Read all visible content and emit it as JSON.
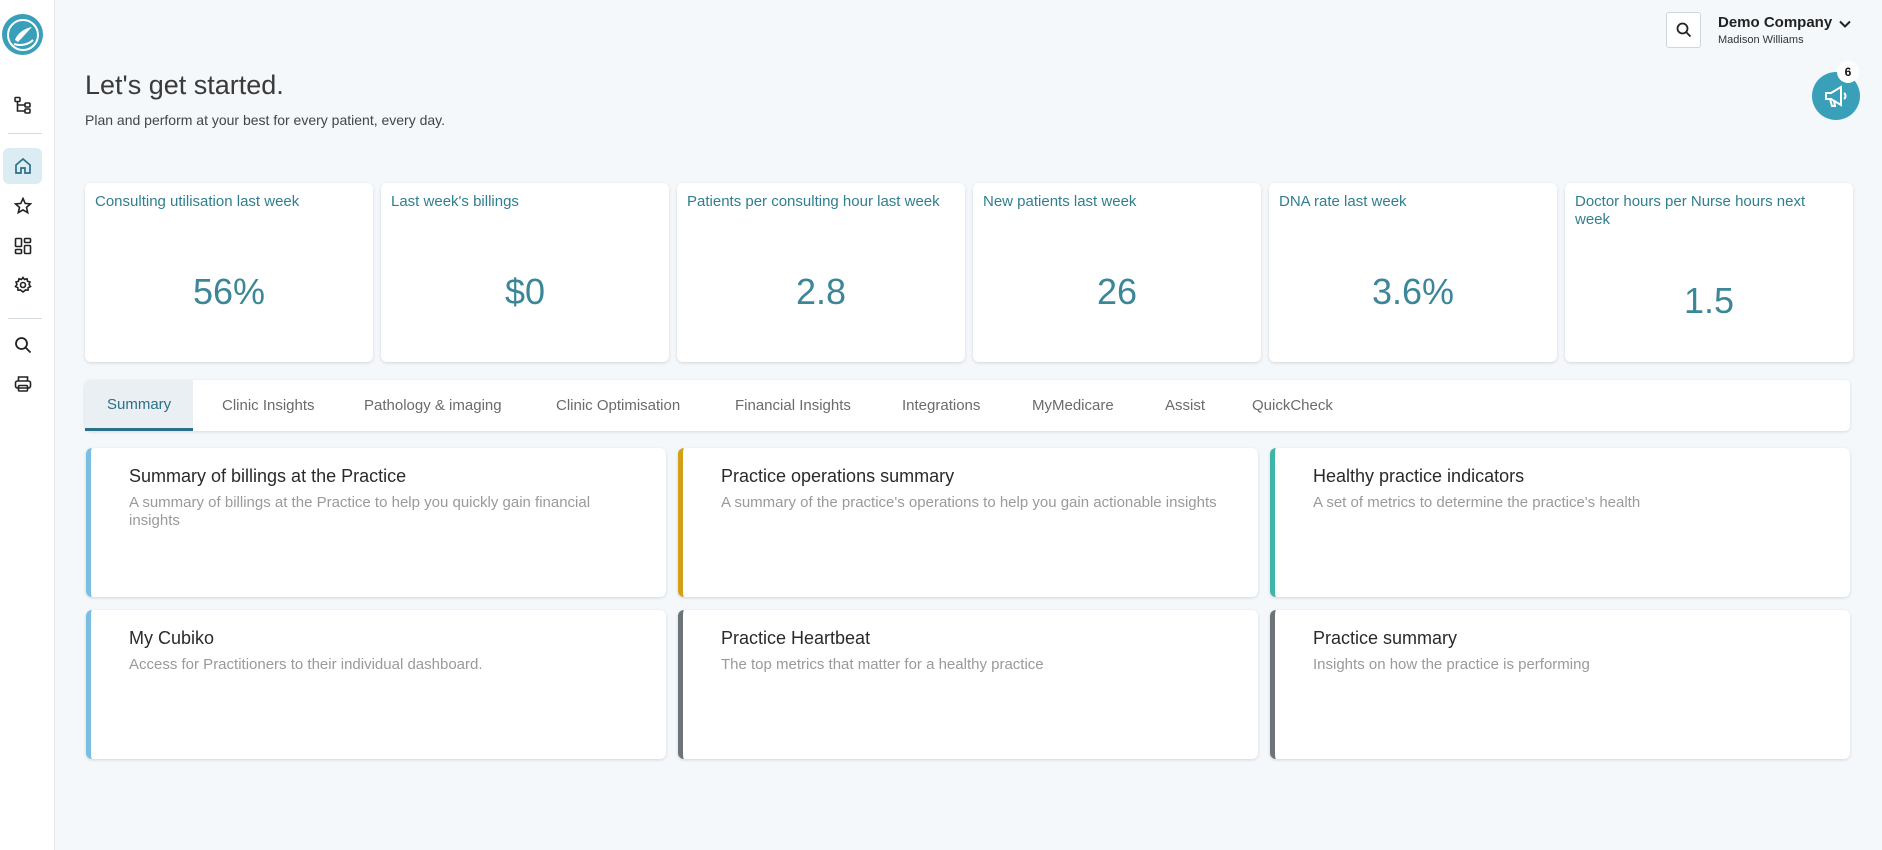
{
  "header": {
    "company_name": "Demo Company",
    "user_name": "Madison Williams",
    "notifications_count": "6"
  },
  "intro": {
    "title": "Let's get started.",
    "subtitle": "Plan and perform at your best for every patient, every day."
  },
  "kpis": [
    {
      "label": "Consulting utilisation last week",
      "value": "56%"
    },
    {
      "label": "Last week's billings",
      "value": "$0"
    },
    {
      "label": "Patients per consulting hour last week",
      "value": "2.8"
    },
    {
      "label": "New patients last week",
      "value": "26"
    },
    {
      "label": "DNA rate last week",
      "value": "3.6%"
    },
    {
      "label": "Doctor hours per Nurse hours next week",
      "value": "1.5"
    }
  ],
  "tabs": [
    {
      "label": "Summary"
    },
    {
      "label": "Clinic Insights"
    },
    {
      "label": "Pathology & imaging"
    },
    {
      "label": "Clinic Optimisation"
    },
    {
      "label": "Financial Insights"
    },
    {
      "label": "Integrations"
    },
    {
      "label": "MyMedicare"
    },
    {
      "label": "Assist"
    },
    {
      "label": "QuickCheck"
    }
  ],
  "dashboards": [
    {
      "title": "Summary of billings at the Practice",
      "description": "A summary of billings at the Practice to help you quickly gain financial insights",
      "accent": "#7bbfe0"
    },
    {
      "title": "Practice operations summary",
      "description": "A summary of the practice's operations to help you gain actionable insights",
      "accent": "#d4a017"
    },
    {
      "title": "Healthy practice indicators",
      "description": "A set of metrics to determine the practice's health",
      "accent": "#3fb5a8"
    },
    {
      "title": "My Cubiko",
      "description": "Access for Practitioners to their individual dashboard.",
      "accent": "#7bbfe0"
    },
    {
      "title": "Practice Heartbeat",
      "description": "The top metrics that matter for a healthy practice",
      "accent": "#6e7378"
    },
    {
      "title": "Practice summary",
      "description": "Insights on how the practice is performing",
      "accent": "#6e7378"
    }
  ],
  "colors": {
    "brand": "#3a9fb9",
    "kpi_text": "#3b8797",
    "active_tab": "#2b6f88"
  }
}
